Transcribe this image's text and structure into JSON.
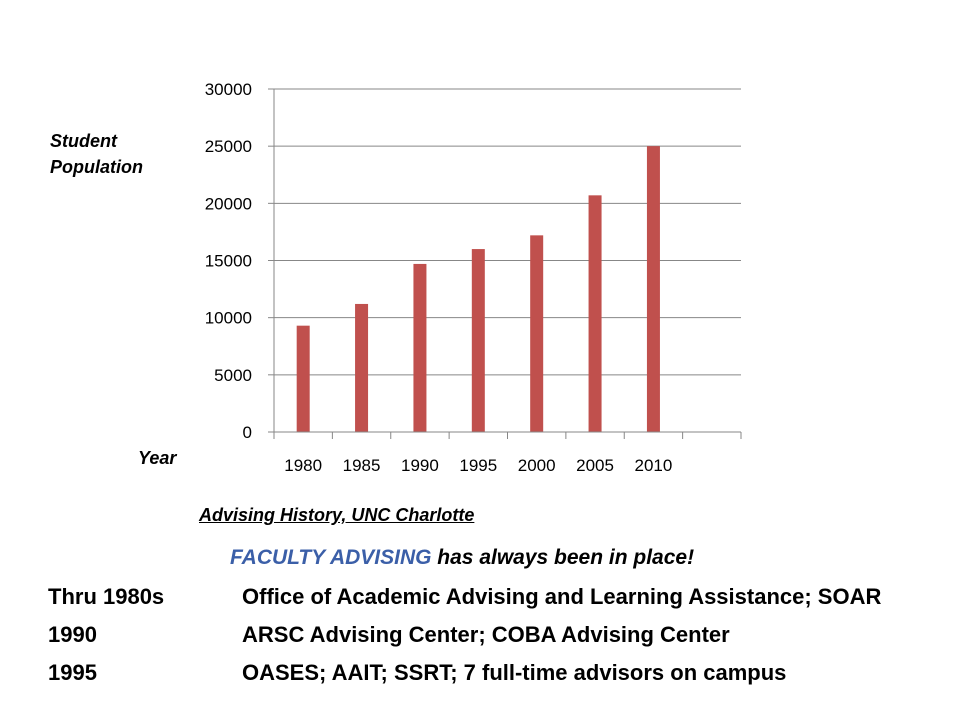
{
  "chart_data": {
    "type": "bar",
    "title": "",
    "ylabel": "Student Population",
    "xlabel": "Year",
    "categories": [
      "1980",
      "1985",
      "1990",
      "1995",
      "2000",
      "2005",
      "2010",
      ""
    ],
    "series": [
      {
        "values": [
          9300,
          11200,
          14700,
          16000,
          17200,
          20700,
          25000,
          null
        ]
      }
    ],
    "ylim": [
      0,
      30000
    ],
    "yticks": [
      "0",
      "5000",
      "10000",
      "15000",
      "20000",
      "25000",
      "30000"
    ],
    "grid": true,
    "legend": "none",
    "bar_color": "#c0504d"
  },
  "text": {
    "source": "Advising History, UNC Charlotte",
    "faculty_highlight": "FACULTY ADVISING",
    "faculty_rest": " has always been in place!"
  },
  "history": [
    {
      "year": "Thru 1980s",
      "desc": "Office of Academic Advising and Learning Assistance; SOAR"
    },
    {
      "year": "1990",
      "desc": "ARSC Advising Center; COBA Advising Center"
    },
    {
      "year": "1995",
      "desc": "OASES; AAIT; SSRT; 7 full-time advisors on campus"
    }
  ]
}
